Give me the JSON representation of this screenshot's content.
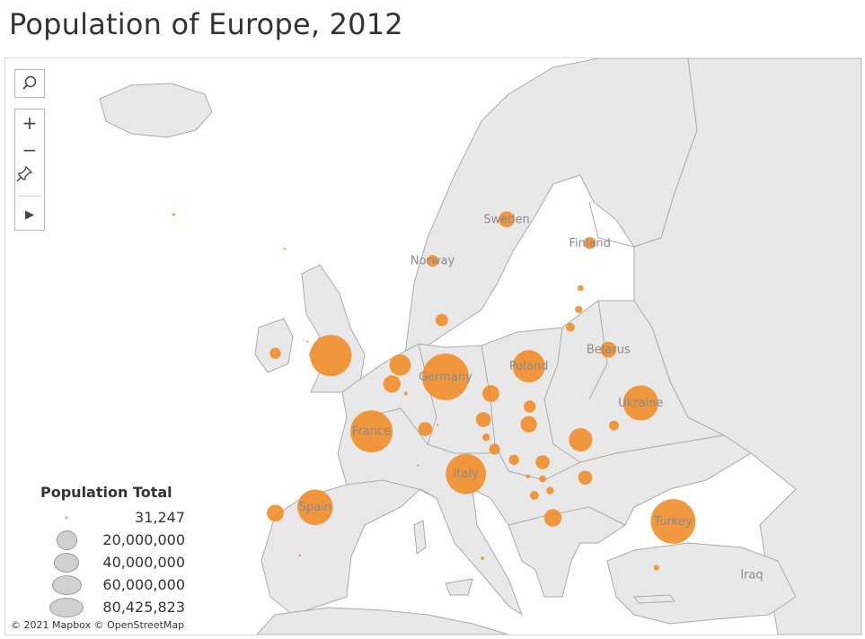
{
  "title": "Population of Europe, 2012",
  "attribution": "© 2021 Mapbox © OpenStreetMap",
  "colors": {
    "bubble": "#f08a24",
    "land": "#e8e8e8",
    "sea": "#ffffff",
    "border": "#ababab",
    "legend_marker": "#d0d0d0"
  },
  "controls": {
    "search_icon": "magnifier-icon",
    "zoom_in": "+",
    "zoom_out": "−",
    "pin_icon": "pin-icon",
    "expand_icon": "▶"
  },
  "legend": {
    "title": "Population Total",
    "entries": [
      {
        "label": "31,247",
        "value": 31247
      },
      {
        "label": "20,000,000",
        "value": 20000000
      },
      {
        "label": "40,000,000",
        "value": 40000000
      },
      {
        "label": "60,000,000",
        "value": 60000000
      },
      {
        "label": "80,425,823",
        "value": 80425823
      }
    ]
  },
  "map_labels": [
    "Sweden",
    "Finland",
    "Norway",
    "Belarus",
    "Poland",
    "Germany",
    "Ukraine",
    "France",
    "Italy",
    "Spain",
    "Turkey",
    "Iraq"
  ],
  "countries": [
    {
      "label": "Germany",
      "population": 80425823,
      "lon": 10.4,
      "lat": 51.2
    },
    {
      "label": "Turkey",
      "population": 74000000,
      "lon": 35.0,
      "lat": 39.0
    },
    {
      "label": "France",
      "population": 65600000,
      "lon": 2.4,
      "lat": 46.6
    },
    {
      "label": "",
      "population": 63700000,
      "lon": -2.0,
      "lat": 53.0
    },
    {
      "label": "Italy",
      "population": 59500000,
      "lon": 12.6,
      "lat": 43.0
    },
    {
      "label": "Spain",
      "population": 46800000,
      "lon": -3.7,
      "lat": 40.2
    },
    {
      "label": "Ukraine",
      "population": 45600000,
      "lon": 31.5,
      "lat": 49.0
    },
    {
      "label": "Poland",
      "population": 38500000,
      "lon": 19.4,
      "lat": 52.1
    },
    {
      "label": "",
      "population": 20100000,
      "lon": 25.0,
      "lat": 45.9
    },
    {
      "label": "",
      "population": 16750000,
      "lon": 5.5,
      "lat": 52.2
    },
    {
      "label": "",
      "population": 11100000,
      "lon": 4.6,
      "lat": 50.6
    },
    {
      "label": "",
      "population": 11100000,
      "lon": 22.0,
      "lat": 39.3
    },
    {
      "label": "",
      "population": 10500000,
      "lon": -8.0,
      "lat": 39.7
    },
    {
      "label": "",
      "population": 10500000,
      "lon": 15.3,
      "lat": 49.8
    },
    {
      "label": "",
      "population": 9900000,
      "lon": 19.4,
      "lat": 47.2
    },
    {
      "label": "Belarus",
      "population": 9460000,
      "lon": 28.0,
      "lat": 53.5
    },
    {
      "label": "Sweden",
      "population": 9500000,
      "lon": 17.0,
      "lat": 64.5
    },
    {
      "label": "",
      "population": 8400000,
      "lon": 14.5,
      "lat": 47.6
    },
    {
      "label": "",
      "population": 7300000,
      "lon": 8.2,
      "lat": 46.8
    },
    {
      "label": "",
      "population": 7300000,
      "lon": 25.5,
      "lat": 42.7
    },
    {
      "label": "",
      "population": 7200000,
      "lon": 20.9,
      "lat": 44.0
    },
    {
      "label": "",
      "population": 5600000,
      "lon": 10.0,
      "lat": 56.0
    },
    {
      "label": "Finland",
      "population": 5400000,
      "lon": 26.0,
      "lat": 62.5
    },
    {
      "label": "",
      "population": 5400000,
      "lon": 19.5,
      "lat": 48.7
    },
    {
      "label": "Norway",
      "population": 5000000,
      "lon": 9.0,
      "lat": 61.0
    },
    {
      "label": "",
      "population": 4580000,
      "lon": -8.0,
      "lat": 53.2
    },
    {
      "label": "",
      "population": 4270000,
      "lon": 15.7,
      "lat": 45.1
    },
    {
      "label": "",
      "population": 3830000,
      "lon": 17.8,
      "lat": 44.2
    },
    {
      "label": "",
      "population": 3560000,
      "lon": 28.6,
      "lat": 47.1
    },
    {
      "label": "",
      "population": 3000000,
      "lon": 23.9,
      "lat": 55.4
    },
    {
      "label": "",
      "population": 2900000,
      "lon": 20.0,
      "lat": 41.2
    },
    {
      "label": "",
      "population": 2060000,
      "lon": 21.7,
      "lat": 41.6
    },
    {
      "label": "",
      "population": 2040000,
      "lon": 24.8,
      "lat": 56.9
    },
    {
      "label": "",
      "population": 2060000,
      "lon": 14.8,
      "lat": 46.1
    },
    {
      "label": "",
      "population": 1800000,
      "lon": 20.9,
      "lat": 42.6
    },
    {
      "label": "",
      "population": 1330000,
      "lon": 25.0,
      "lat": 58.7
    },
    {
      "label": "",
      "population": 1130000,
      "lon": 33.2,
      "lat": 35.1
    },
    {
      "label": "",
      "population": 620000,
      "lon": 19.3,
      "lat": 42.8
    },
    {
      "label": "",
      "population": 530000,
      "lon": 6.1,
      "lat": 49.8
    },
    {
      "label": "",
      "population": 420000,
      "lon": 14.4,
      "lat": 35.9
    },
    {
      "label": "",
      "population": 320000,
      "lon": -19.0,
      "lat": 64.9
    },
    {
      "label": "",
      "population": 85000,
      "lon": -4.5,
      "lat": 54.2
    },
    {
      "label": "",
      "population": 49000,
      "lon": -7.0,
      "lat": 62.0
    },
    {
      "label": "",
      "population": 32000,
      "lon": 12.45,
      "lat": 43.94
    },
    {
      "label": "",
      "population": 36000,
      "lon": 9.55,
      "lat": 47.15
    },
    {
      "label": "",
      "population": 36000,
      "lon": 7.42,
      "lat": 43.74
    },
    {
      "label": "",
      "population": 31247,
      "lon": -5.35,
      "lat": 36.14
    }
  ]
}
